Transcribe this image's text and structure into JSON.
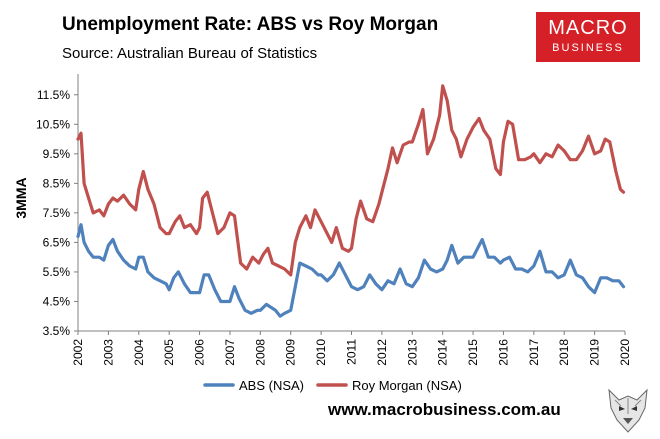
{
  "header": {
    "title": "Unemployment Rate: ABS vs Roy Morgan",
    "subtitle": "Source: Australian Bureau of Statistics"
  },
  "logo": {
    "top": "MACRO",
    "bottom": "BUSINESS",
    "color": "#d62027"
  },
  "footer": {
    "website": "www.macrobusiness.com.au"
  },
  "chart_data": {
    "type": "line",
    "title": "Unemployment Rate: ABS vs Roy Morgan",
    "subtitle": "Source: Australian Bureau of Statistics",
    "xlabel": "",
    "ylabel": "3MMA",
    "xlim": [
      2002,
      2020
    ],
    "ylim": [
      3.5,
      12
    ],
    "y_ticks": [
      "3.5%",
      "4.5%",
      "5.5%",
      "6.5%",
      "7.5%",
      "8.5%",
      "9.5%",
      "10.5%",
      "11.5%"
    ],
    "x_ticks": [
      "2002",
      "2003",
      "2004",
      "2005",
      "2006",
      "2007",
      "2008",
      "2009",
      "2010",
      "2011",
      "2012",
      "2013",
      "2014",
      "2015",
      "2016",
      "2017",
      "2018",
      "2019",
      "2020"
    ],
    "legend_position": "bottom",
    "series": [
      {
        "name": "ABS (NSA)",
        "color": "#4f81bd",
        "x": [
          2002.0,
          2002.1,
          2002.2,
          2002.35,
          2002.5,
          2002.7,
          2002.85,
          2003.0,
          2003.15,
          2003.3,
          2003.5,
          2003.7,
          2003.9,
          2004.0,
          2004.15,
          2004.3,
          2004.5,
          2004.7,
          2004.9,
          2005.0,
          2005.15,
          2005.3,
          2005.5,
          2005.7,
          2005.9,
          2006.0,
          2006.15,
          2006.3,
          2006.5,
          2006.7,
          2006.9,
          2007.0,
          2007.15,
          2007.3,
          2007.5,
          2007.7,
          2007.9,
          2008.0,
          2008.2,
          2008.35,
          2008.5,
          2008.65,
          2008.8,
          2009.0,
          2009.15,
          2009.3,
          2009.5,
          2009.7,
          2009.9,
          2010.0,
          2010.2,
          2010.4,
          2010.6,
          2010.8,
          2011.0,
          2011.2,
          2011.4,
          2011.6,
          2011.8,
          2012.0,
          2012.2,
          2012.4,
          2012.6,
          2012.8,
          2013.0,
          2013.2,
          2013.4,
          2013.6,
          2013.8,
          2014.0,
          2014.15,
          2014.3,
          2014.5,
          2014.7,
          2014.9,
          2015.0,
          2015.15,
          2015.3,
          2015.5,
          2015.7,
          2015.9,
          2016.0,
          2016.2,
          2016.4,
          2016.6,
          2016.8,
          2017.0,
          2017.2,
          2017.4,
          2017.6,
          2017.8,
          2018.0,
          2018.2,
          2018.4,
          2018.6,
          2018.8,
          2019.0,
          2019.2,
          2019.4,
          2019.6,
          2019.8,
          2019.95
        ],
        "values": [
          6.7,
          7.1,
          6.5,
          6.2,
          6.0,
          6.0,
          5.9,
          6.4,
          6.6,
          6.2,
          5.9,
          5.7,
          5.6,
          6.0,
          6.0,
          5.5,
          5.3,
          5.2,
          5.1,
          4.9,
          5.3,
          5.5,
          5.1,
          4.8,
          4.8,
          4.8,
          5.4,
          5.4,
          4.9,
          4.5,
          4.5,
          4.5,
          5.0,
          4.6,
          4.2,
          4.1,
          4.2,
          4.2,
          4.4,
          4.3,
          4.2,
          4.0,
          4.1,
          4.2,
          5.0,
          5.8,
          5.7,
          5.6,
          5.4,
          5.4,
          5.2,
          5.4,
          5.8,
          5.4,
          5.0,
          4.9,
          5.0,
          5.4,
          5.1,
          4.9,
          5.2,
          5.1,
          5.6,
          5.1,
          5.0,
          5.3,
          5.9,
          5.6,
          5.5,
          5.6,
          5.9,
          6.4,
          5.8,
          6.0,
          6.0,
          6.0,
          6.3,
          6.6,
          6.0,
          6.0,
          5.8,
          5.9,
          6.0,
          5.6,
          5.6,
          5.5,
          5.7,
          6.2,
          5.5,
          5.5,
          5.3,
          5.4,
          5.9,
          5.4,
          5.3,
          5.0,
          4.8,
          5.3,
          5.3,
          5.2,
          5.2,
          5.0
        ]
      },
      {
        "name": "Roy Morgan (NSA)",
        "color": "#c0504d",
        "x": [
          2002.0,
          2002.1,
          2002.2,
          2002.35,
          2002.5,
          2002.7,
          2002.85,
          2003.0,
          2003.15,
          2003.3,
          2003.5,
          2003.7,
          2003.9,
          2004.0,
          2004.15,
          2004.3,
          2004.5,
          2004.7,
          2004.9,
          2005.0,
          2005.2,
          2005.35,
          2005.5,
          2005.7,
          2005.9,
          2006.0,
          2006.1,
          2006.25,
          2006.4,
          2006.6,
          2006.8,
          2007.0,
          2007.15,
          2007.35,
          2007.55,
          2007.75,
          2007.95,
          2008.1,
          2008.25,
          2008.4,
          2008.6,
          2008.8,
          2009.0,
          2009.15,
          2009.3,
          2009.5,
          2009.65,
          2009.8,
          2010.0,
          2010.2,
          2010.35,
          2010.5,
          2010.7,
          2010.9,
          2011.0,
          2011.15,
          2011.3,
          2011.5,
          2011.7,
          2011.9,
          2012.0,
          2012.2,
          2012.35,
          2012.5,
          2012.7,
          2012.9,
          2013.0,
          2013.2,
          2013.35,
          2013.5,
          2013.7,
          2013.9,
          2014.0,
          2014.15,
          2014.3,
          2014.45,
          2014.6,
          2014.8,
          2015.0,
          2015.2,
          2015.35,
          2015.55,
          2015.75,
          2015.9,
          2016.0,
          2016.15,
          2016.3,
          2016.5,
          2016.7,
          2016.9,
          2017.0,
          2017.2,
          2017.4,
          2017.6,
          2017.8,
          2018.0,
          2018.2,
          2018.4,
          2018.6,
          2018.8,
          2019.0,
          2019.2,
          2019.35,
          2019.5,
          2019.7,
          2019.85,
          2019.95
        ],
        "values": [
          10.0,
          10.2,
          8.5,
          8.0,
          7.5,
          7.6,
          7.4,
          7.8,
          8.0,
          7.9,
          8.1,
          7.8,
          7.6,
          8.3,
          8.9,
          8.3,
          7.8,
          7.0,
          6.8,
          6.8,
          7.2,
          7.4,
          7.0,
          7.1,
          6.8,
          7.0,
          8.0,
          8.2,
          7.6,
          6.8,
          7.0,
          7.5,
          7.4,
          5.8,
          5.6,
          6.0,
          5.8,
          6.1,
          6.3,
          5.8,
          5.7,
          5.6,
          5.4,
          6.5,
          7.0,
          7.4,
          7.0,
          7.6,
          7.2,
          6.8,
          6.5,
          7.0,
          6.3,
          6.2,
          6.3,
          7.3,
          7.9,
          7.3,
          7.2,
          7.8,
          8.2,
          9.0,
          9.7,
          9.2,
          9.8,
          9.9,
          9.9,
          10.5,
          11.0,
          9.5,
          10.0,
          10.8,
          11.8,
          11.3,
          10.3,
          10.0,
          9.4,
          10.0,
          10.4,
          10.7,
          10.3,
          10.0,
          9.0,
          8.8,
          9.9,
          10.6,
          10.5,
          9.3,
          9.3,
          9.4,
          9.5,
          9.2,
          9.5,
          9.4,
          9.8,
          9.6,
          9.3,
          9.3,
          9.6,
          10.1,
          9.5,
          9.6,
          10.0,
          9.9,
          8.9,
          8.3,
          8.2
        ]
      }
    ]
  }
}
